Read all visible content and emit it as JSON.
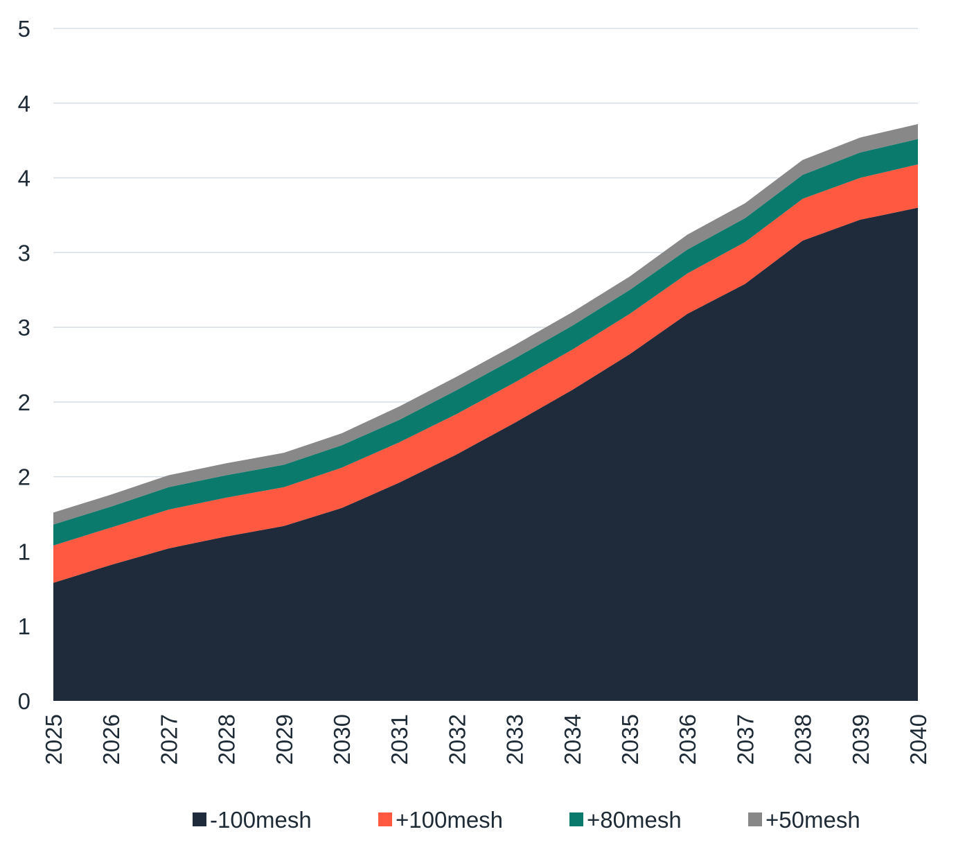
{
  "chart_data": {
    "type": "area",
    "stacked": true,
    "title": "",
    "xlabel": "",
    "ylabel": "",
    "categories": [
      "2025",
      "2026",
      "2027",
      "2028",
      "2029",
      "2030",
      "2031",
      "2032",
      "2033",
      "2034",
      "2035",
      "2036",
      "2037",
      "2038",
      "2039",
      "2040"
    ],
    "ylim": [
      0,
      4.5
    ],
    "y_tick_labels": [
      "0",
      "1",
      "1",
      "2",
      "2",
      "3",
      "3",
      "4",
      "4",
      "5"
    ],
    "grid": true,
    "legend_position": "bottom",
    "series": [
      {
        "name": "-100mesh",
        "color": "#1f2a3a",
        "values": [
          0.79,
          0.91,
          1.02,
          1.1,
          1.17,
          1.29,
          1.46,
          1.65,
          1.86,
          2.08,
          2.32,
          2.59,
          2.79,
          3.08,
          3.22,
          3.3
        ]
      },
      {
        "name": "+100mesh",
        "color": "#ff5a41",
        "values": [
          0.25,
          0.25,
          0.26,
          0.26,
          0.26,
          0.27,
          0.27,
          0.27,
          0.27,
          0.27,
          0.27,
          0.27,
          0.28,
          0.28,
          0.28,
          0.29
        ]
      },
      {
        "name": "+80mesh",
        "color": "#0a7a6c",
        "values": [
          0.14,
          0.14,
          0.15,
          0.15,
          0.15,
          0.15,
          0.15,
          0.16,
          0.16,
          0.16,
          0.16,
          0.16,
          0.16,
          0.16,
          0.17,
          0.17
        ]
      },
      {
        "name": "+50mesh",
        "color": "#888888",
        "values": [
          0.08,
          0.08,
          0.08,
          0.08,
          0.08,
          0.08,
          0.09,
          0.09,
          0.09,
          0.09,
          0.09,
          0.1,
          0.1,
          0.1,
          0.1,
          0.1
        ]
      }
    ]
  }
}
